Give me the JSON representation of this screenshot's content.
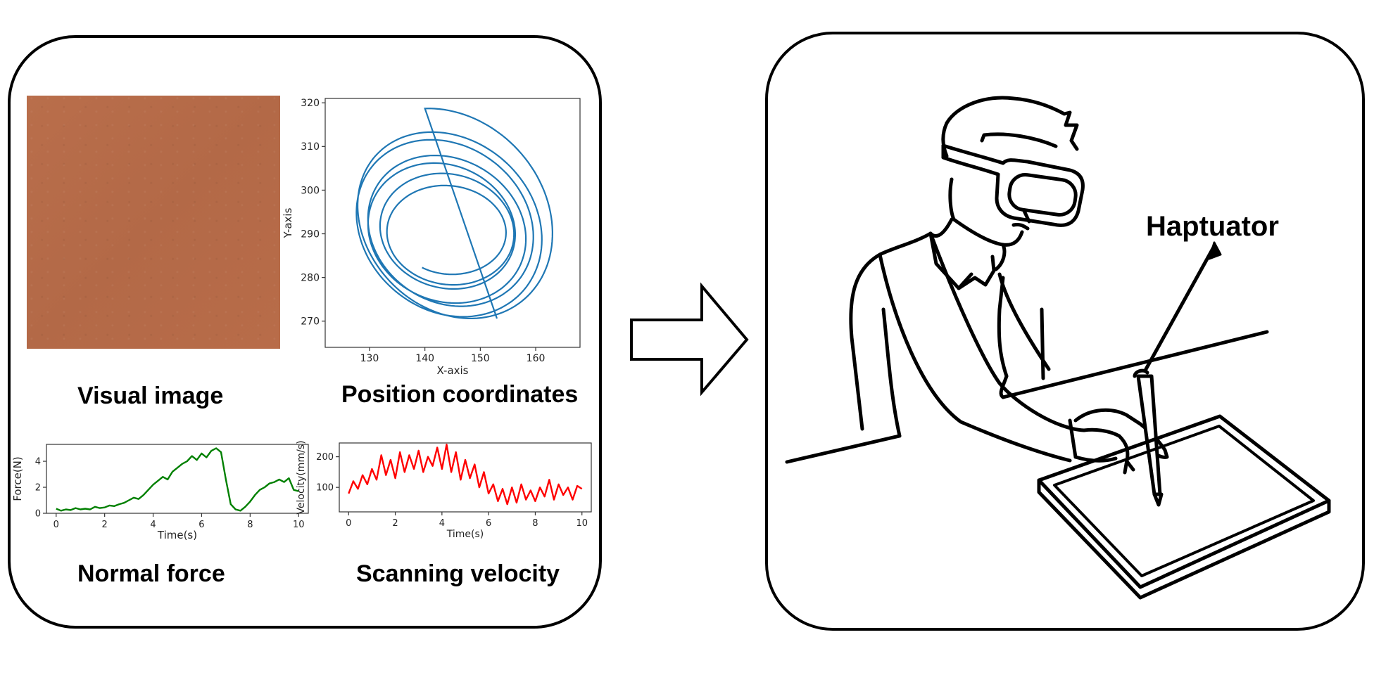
{
  "captions": {
    "visual_image": "Visual image",
    "position_coordinates": "Position coordinates",
    "normal_force": "Normal force",
    "scanning_velocity": "Scanning velocity",
    "haptuator": "Haptuator"
  },
  "colors": {
    "texture": "#b66b48",
    "trajectory": "#1f77b4",
    "force": "#008000",
    "velocity": "#ff0000"
  },
  "icons": {
    "arrow": "right-arrow-icon",
    "person": "vr-user-with-stylus-illustration"
  },
  "chart_data": [
    {
      "type": "line",
      "title": "",
      "xlabel": "X-axis",
      "ylabel": "Y-axis",
      "xlim": [
        122,
        168
      ],
      "ylim": [
        264,
        321
      ],
      "xticks": [
        130,
        140,
        150,
        160
      ],
      "yticks": [
        270,
        280,
        290,
        300,
        310,
        320
      ],
      "grid": false,
      "series": [
        {
          "spiral": {
            "cx0": 145.0,
            "cy0": 289.5,
            "rx0": 10.5,
            "ry0": 10.0,
            "cx1": 143.5,
            "cy1": 294.0,
            "rx1": 19.0,
            "ry1": 25.0,
            "turns": 6.6,
            "start": [
              153.0,
              270.6
            ],
            "end_pt": [
              128.0,
              291.0
            ]
          }
        }
      ]
    },
    {
      "type": "line",
      "title": "",
      "xlabel": "Time(s)",
      "ylabel": "Force(N)",
      "xlim": [
        -0.4,
        10.4
      ],
      "ylim": [
        0,
        5.3
      ],
      "xticks": [
        0,
        2,
        4,
        6,
        8,
        10
      ],
      "yticks": [
        0,
        2,
        4
      ],
      "grid": false,
      "series": [
        {
          "x": [
            0,
            0.2,
            0.4,
            0.6,
            0.8,
            1.0,
            1.2,
            1.4,
            1.6,
            1.8,
            2.0,
            2.2,
            2.4,
            2.6,
            2.8,
            3.0,
            3.2,
            3.4,
            3.6,
            3.8,
            4.0,
            4.2,
            4.4,
            4.6,
            4.8,
            5.0,
            5.2,
            5.4,
            5.6,
            5.8,
            6.0,
            6.2,
            6.4,
            6.6,
            6.8,
            7.0,
            7.2,
            7.4,
            7.6,
            7.8,
            8.0,
            8.2,
            8.4,
            8.6,
            8.8,
            9.0,
            9.2,
            9.4,
            9.6,
            9.8,
            10.0
          ],
          "values": [
            0.35,
            0.2,
            0.3,
            0.25,
            0.4,
            0.3,
            0.35,
            0.3,
            0.5,
            0.4,
            0.45,
            0.6,
            0.55,
            0.7,
            0.8,
            1.0,
            1.2,
            1.1,
            1.4,
            1.8,
            2.2,
            2.5,
            2.8,
            2.6,
            3.2,
            3.5,
            3.8,
            4.0,
            4.4,
            4.1,
            4.6,
            4.3,
            4.8,
            5.0,
            4.7,
            2.6,
            0.7,
            0.3,
            0.2,
            0.5,
            0.9,
            1.4,
            1.8,
            2.0,
            2.3,
            2.4,
            2.6,
            2.4,
            2.7,
            1.8,
            1.7
          ]
        }
      ]
    },
    {
      "type": "line",
      "title": "",
      "xlabel": "Time(s)",
      "ylabel": "Velocity(mm/s)",
      "xlim": [
        -0.4,
        10.4
      ],
      "ylim": [
        20,
        245
      ],
      "xticks": [
        0,
        2,
        4,
        6,
        8,
        10
      ],
      "yticks": [
        100,
        200
      ],
      "grid": false,
      "series": [
        {
          "x": [
            0,
            0.2,
            0.4,
            0.6,
            0.8,
            1.0,
            1.2,
            1.4,
            1.6,
            1.8,
            2.0,
            2.2,
            2.4,
            2.6,
            2.8,
            3.0,
            3.2,
            3.4,
            3.6,
            3.8,
            4.0,
            4.2,
            4.4,
            4.6,
            4.8,
            5.0,
            5.2,
            5.4,
            5.6,
            5.8,
            6.0,
            6.2,
            6.4,
            6.6,
            6.8,
            7.0,
            7.2,
            7.4,
            7.6,
            7.8,
            8.0,
            8.2,
            8.4,
            8.6,
            8.8,
            9.0,
            9.2,
            9.4,
            9.6,
            9.8,
            10.0
          ],
          "values": [
            80,
            120,
            95,
            140,
            110,
            160,
            125,
            205,
            140,
            190,
            130,
            215,
            150,
            205,
            160,
            220,
            150,
            200,
            170,
            230,
            160,
            240,
            150,
            215,
            125,
            190,
            130,
            175,
            100,
            150,
            80,
            110,
            55,
            95,
            45,
            100,
            50,
            110,
            60,
            90,
            55,
            100,
            70,
            125,
            60,
            110,
            75,
            100,
            60,
            105,
            95
          ]
        }
      ]
    }
  ]
}
